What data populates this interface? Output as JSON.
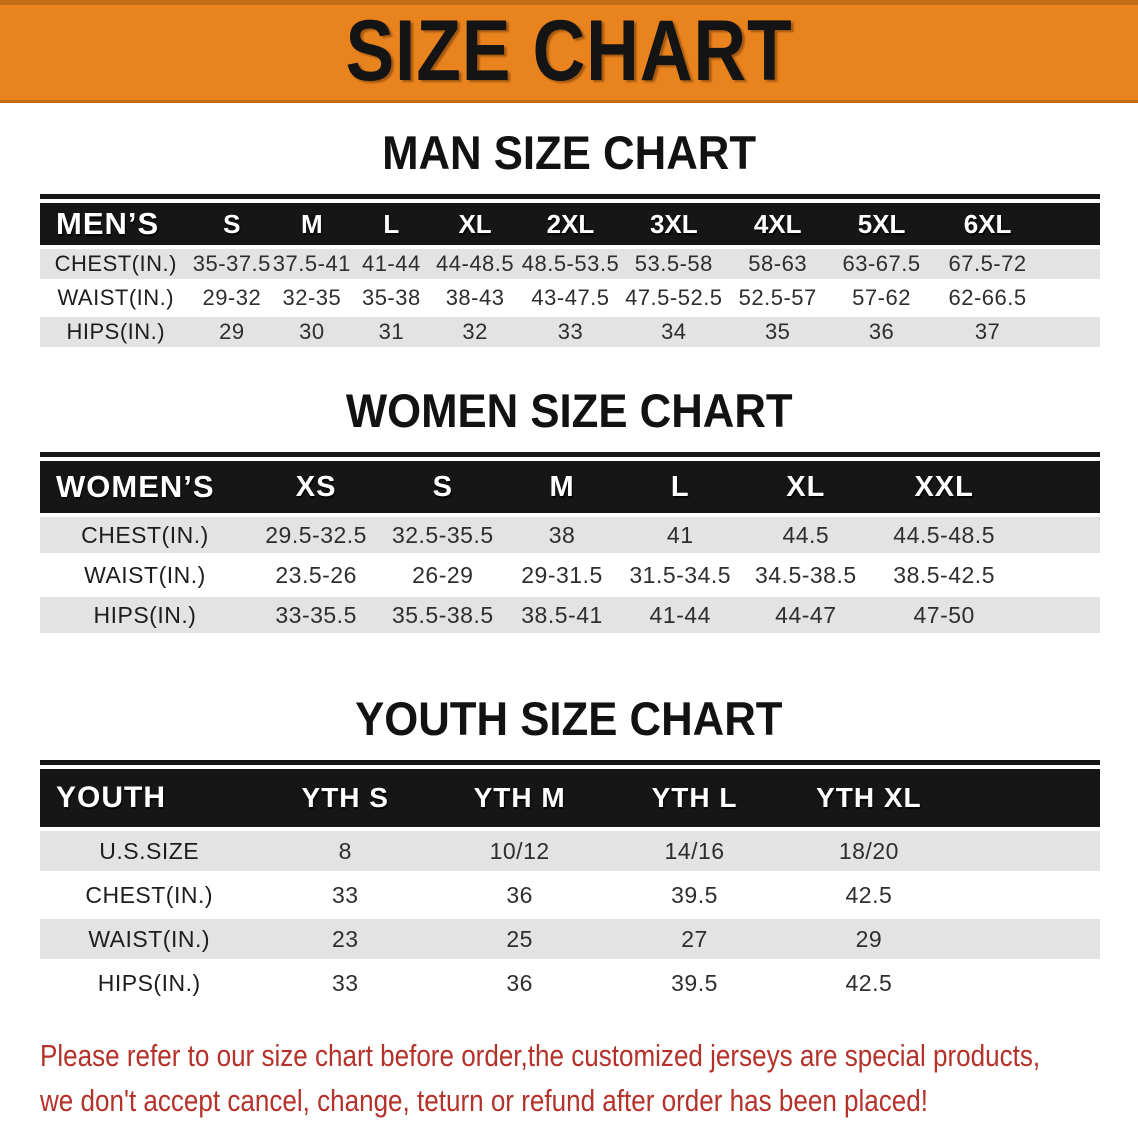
{
  "banner": {
    "title": "SIZE CHART"
  },
  "sections": [
    {
      "heading": "MAN SIZE CHART",
      "table": {
        "header_label": "MEN’S",
        "columns": [
          "S",
          "M",
          "L",
          "XL",
          "2XL",
          "3XL",
          "4XL",
          "5XL",
          "6XL"
        ],
        "rows": [
          {
            "label": "CHEST(IN.)",
            "values": [
              "35-37.5",
              "37.5-41",
              "41-44",
              "44-48.5",
              "48.5-53.5",
              "53.5-58",
              "58-63",
              "63-67.5",
              "67.5-72"
            ]
          },
          {
            "label": "WAIST(IN.)",
            "values": [
              "29-32",
              "32-35",
              "35-38",
              "38-43",
              "43-47.5",
              "47.5-52.5",
              "52.5-57",
              "57-62",
              "62-66.5"
            ]
          },
          {
            "label": "HIPS(IN.)",
            "values": [
              "29",
              "30",
              "31",
              "32",
              "33",
              "34",
              "35",
              "36",
              "37"
            ]
          }
        ]
      }
    },
    {
      "heading": "WOMEN SIZE CHART",
      "table": {
        "header_label": "WOMEN’S",
        "columns": [
          "XS",
          "S",
          "M",
          "L",
          "XL",
          "XXL"
        ],
        "rows": [
          {
            "label": "CHEST(IN.)",
            "values": [
              "29.5-32.5",
              "32.5-35.5",
              "38",
              "41",
              "44.5",
              "44.5-48.5"
            ]
          },
          {
            "label": "WAIST(IN.)",
            "values": [
              "23.5-26",
              "26-29",
              "29-31.5",
              "31.5-34.5",
              "34.5-38.5",
              "38.5-42.5"
            ]
          },
          {
            "label": "HIPS(IN.)",
            "values": [
              "33-35.5",
              "35.5-38.5",
              "38.5-41",
              "41-44",
              "44-47",
              "47-50"
            ]
          }
        ]
      }
    },
    {
      "heading": "YOUTH SIZE CHART",
      "table": {
        "header_label": "YOUTH",
        "columns": [
          "YTH S",
          "YTH M",
          "YTH L",
          "YTH XL"
        ],
        "rows": [
          {
            "label": "U.S.SIZE",
            "values": [
              "8",
              "10/12",
              "14/16",
              "18/20"
            ]
          },
          {
            "label": "CHEST(IN.)",
            "values": [
              "33",
              "36",
              "39.5",
              "42.5"
            ]
          },
          {
            "label": "WAIST(IN.)",
            "values": [
              "23",
              "25",
              "27",
              "29"
            ]
          },
          {
            "label": "HIPS(IN.)",
            "values": [
              "33",
              "36",
              "39.5",
              "42.5"
            ]
          }
        ]
      }
    }
  ],
  "disclaimer": {
    "line1": "Please refer to our size chart before order,the customized jerseys are special products,",
    "line2": "we don't accept cancel, change, teturn or refund after order has been placed!"
  },
  "colors": {
    "banner_bg": "#E8831E",
    "banner_text": "#141414",
    "header_row_bg": "#161616",
    "header_row_text": "#FFFFFF",
    "stripe_row_bg": "#E3E3E3",
    "disclaimer_text": "#B5322B"
  }
}
